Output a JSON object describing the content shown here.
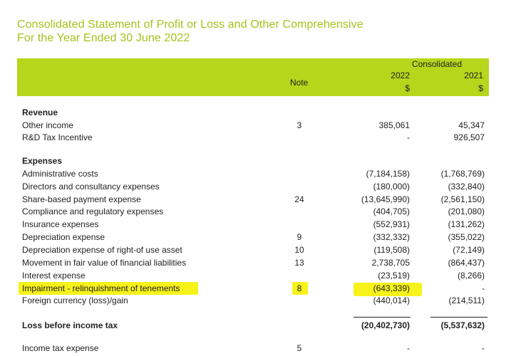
{
  "title_line1": "Consolidated Statement of Profit or Loss and Other Comprehensive",
  "title_line2": "For the Year Ended 30 June 2022",
  "header": {
    "consolidated": "Consolidated",
    "note": "Note",
    "year1": "2022",
    "year2": "2021",
    "currency1": "$",
    "currency2": "$"
  },
  "revenue": {
    "heading": "Revenue",
    "rows": [
      {
        "label": "Other income",
        "note": "3",
        "v2022": "385,061",
        "v2021": "45,347"
      },
      {
        "label": "R&D Tax Incentive",
        "note": "",
        "v2022": "-",
        "v2021": "926,507"
      }
    ]
  },
  "expenses": {
    "heading": "Expenses",
    "rows": [
      {
        "label": "Administrative costs",
        "note": "",
        "v2022": "(7,184,158)",
        "v2021": "(1,768,769)"
      },
      {
        "label": "Directors and consultancy expenses",
        "note": "",
        "v2022": "(180,000)",
        "v2021": "(332,840)"
      },
      {
        "label": "Share-based payment expense",
        "note": "24",
        "v2022": "(13,645,990)",
        "v2021": "(2,561,150)"
      },
      {
        "label": "Compliance and regulatory expenses",
        "note": "",
        "v2022": "(404,705)",
        "v2021": "(201,080)"
      },
      {
        "label": "Insurance expenses",
        "note": "",
        "v2022": "(552,931)",
        "v2021": "(131,262)"
      },
      {
        "label": "Depreciation expense",
        "note": "9",
        "v2022": "(332,332)",
        "v2021": "(355,022)"
      },
      {
        "label": "Depreciation expense of right-of use asset",
        "note": "10",
        "v2022": "(119,508)",
        "v2021": "(72,149)"
      },
      {
        "label": "Movement in fair value of financial liabilities",
        "note": "13",
        "v2022": "2,738,705",
        "v2021": "(864,437)"
      },
      {
        "label": "Interest expense",
        "note": "",
        "v2022": "(23,519)",
        "v2021": "(8,266)"
      },
      {
        "label": "Impairment - relinquishment of tenements",
        "note": "8",
        "v2022": "(643,339)",
        "v2021": "-"
      },
      {
        "label": "Foreign currency (loss)/gain",
        "note": "",
        "v2022": "(440,014)",
        "v2021": "(214,511)"
      }
    ]
  },
  "loss_before_tax": {
    "label": "Loss before income tax",
    "v2022": "(20,402,730)",
    "v2021": "(5,537,632)"
  },
  "income_tax": {
    "label": "Income tax expense",
    "note": "5",
    "v2022": "-",
    "v2021": "-"
  },
  "highlight_color": "#f6f21a",
  "band_color": "#b5d61b",
  "title_color": "#a5c21b"
}
